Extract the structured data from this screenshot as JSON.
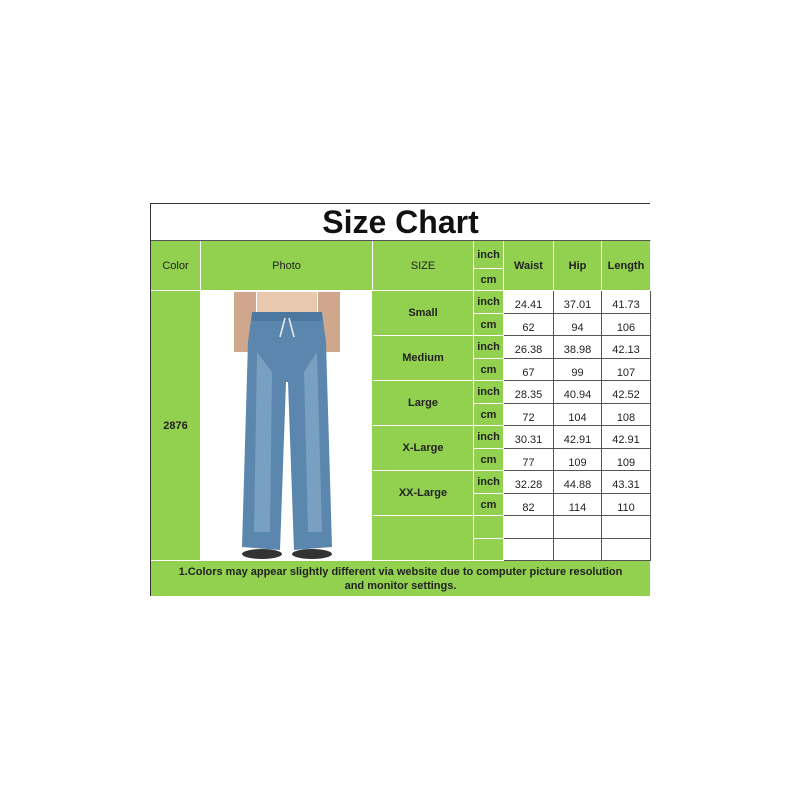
{
  "title": "Size Chart",
  "headers": {
    "color": "Color",
    "photo": "Photo",
    "size": "SIZE",
    "unit_inch": "inch",
    "unit_cm": "cm",
    "waist": "Waist",
    "hip": "Hip",
    "length": "Length"
  },
  "color_value": "2876",
  "rows": [
    {
      "size": "Small",
      "inch": [
        "24.41",
        "37.01",
        "41.73"
      ],
      "cm": [
        "62",
        "94",
        "106"
      ]
    },
    {
      "size": "Medium",
      "inch": [
        "26.38",
        "38.98",
        "42.13"
      ],
      "cm": [
        "67",
        "99",
        "107"
      ]
    },
    {
      "size": "Large",
      "inch": [
        "28.35",
        "40.94",
        "42.52"
      ],
      "cm": [
        "72",
        "104",
        "108"
      ]
    },
    {
      "size": "X-Large",
      "inch": [
        "30.31",
        "42.91",
        "42.91"
      ],
      "cm": [
        "77",
        "109",
        "109"
      ]
    },
    {
      "size": "XX-Large",
      "inch": [
        "32.28",
        "44.88",
        "43.31"
      ],
      "cm": [
        "82",
        "114",
        "110"
      ]
    }
  ],
  "footer": "1.Colors may appear slightly different via website due to computer picture resolution and monitor settings.",
  "colors": {
    "header_green": "#92d050",
    "denim": "#5b86ad"
  }
}
